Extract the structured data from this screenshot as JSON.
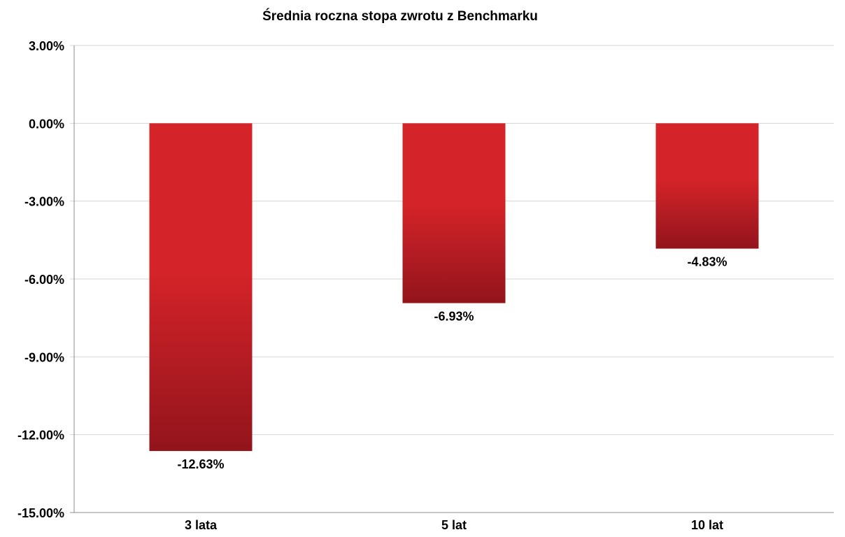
{
  "chart_data": {
    "type": "bar",
    "title": "Średnia roczna stopa zwrotu z Benchmarku",
    "categories": [
      "3 lata",
      "5 lat",
      "10 lat"
    ],
    "values": [
      -12.63,
      -6.93,
      -4.83
    ],
    "value_labels": [
      "-12.63%",
      "-6.93%",
      "-4.83%"
    ],
    "ylim": [
      -15,
      3
    ],
    "yticks": [
      3,
      0,
      -3,
      -6,
      -9,
      -12,
      -15
    ],
    "ytick_labels": [
      "3.00%",
      "0.00%",
      "-3.00%",
      "-6.00%",
      "-9.00%",
      "-12.00%",
      "-15.00%"
    ],
    "xlabel": "",
    "ylabel": "",
    "grid": true,
    "legend": "none",
    "colors": {
      "bar_top": "#d42429",
      "bar_bottom": "#93141c",
      "gridline": "#d4d4d4",
      "axis": "#8c8c8c"
    }
  }
}
